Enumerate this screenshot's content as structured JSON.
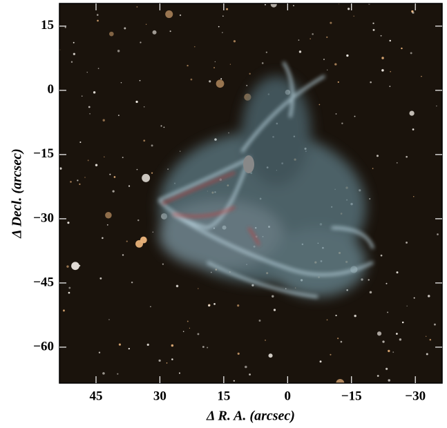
{
  "chart_data": {
    "type": "image",
    "x_label": "Δ R. A. (arcsec)",
    "y_label": "Δ Decl. (arcsec)",
    "xlim": [
      53.6,
      -36.3
    ],
    "ylim": [
      -68.4,
      20.3
    ],
    "xticks": [
      45,
      30,
      15,
      0,
      {
        "value": -15,
        "label": "−15"
      },
      {
        "value": -30,
        "label": "−30"
      }
    ],
    "yticks": [
      15,
      0,
      {
        "value": -15,
        "label": "−15"
      },
      {
        "value": -30,
        "label": "−30"
      },
      {
        "value": -45,
        "label": "−45"
      },
      {
        "value": -60,
        "label": "−60"
      }
    ]
  }
}
